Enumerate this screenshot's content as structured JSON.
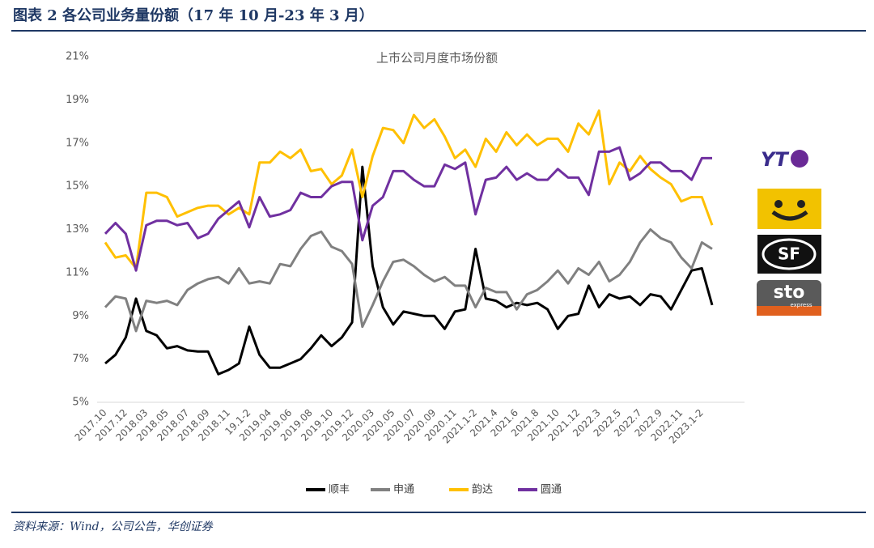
{
  "header": {
    "title": "图表 2 各公司业务量份额（17 年 10 月-23 年 3 月）"
  },
  "chart_data": {
    "type": "line",
    "title": "上市公司月度市场份额",
    "categories": [
      "2017.10",
      null,
      "2017.12",
      null,
      "2018.03",
      null,
      "2018.05",
      null,
      "2018.07",
      null,
      "2018.09",
      null,
      "2018.11",
      null,
      "19.1-2",
      null,
      "2019.04",
      null,
      "2019.06",
      null,
      "2019.08",
      null,
      "2019.10",
      null,
      "2019.12",
      null,
      "2020.03",
      null,
      "2020.05",
      null,
      "2020.07",
      null,
      "2020.09",
      null,
      "2020.11",
      null,
      "2021.1-2",
      null,
      "2021.4",
      null,
      "2021.6",
      null,
      "2021.8",
      null,
      "2021.10",
      null,
      "2021.12",
      null,
      "2022.3",
      null,
      "2022.5",
      null,
      "2022.7",
      null,
      "2022.9",
      null,
      "2022.11",
      null,
      "2023.1-2",
      null
    ],
    "series": [
      {
        "name": "顺丰",
        "color": "#000000",
        "values": [
          6.8,
          7.2,
          8.0,
          9.8,
          8.3,
          8.1,
          7.5,
          7.6,
          7.4,
          7.35,
          7.35,
          6.3,
          6.5,
          6.8,
          8.5,
          7.2,
          6.6,
          6.6,
          6.8,
          7.0,
          7.5,
          8.1,
          7.6,
          8.0,
          8.7,
          15.9,
          11.3,
          9.4,
          8.6,
          9.2,
          9.1,
          9.0,
          9.0,
          8.4,
          9.2,
          9.3,
          12.1,
          9.8,
          9.7,
          9.4,
          9.6,
          9.5,
          9.6,
          9.3,
          8.4,
          9.0,
          9.1,
          10.4,
          9.4,
          10.0,
          9.8,
          9.9,
          9.5,
          10.0,
          9.9,
          9.3,
          10.2,
          11.1,
          11.2,
          9.5
        ]
      },
      {
        "name": "申通",
        "color": "#808080",
        "values": [
          9.4,
          9.9,
          9.8,
          8.3,
          9.7,
          9.6,
          9.7,
          9.5,
          10.2,
          10.5,
          10.7,
          10.8,
          10.5,
          11.2,
          10.5,
          10.6,
          10.5,
          11.4,
          11.3,
          12.1,
          12.7,
          12.9,
          12.2,
          12.0,
          11.4,
          8.5,
          9.5,
          10.6,
          11.5,
          11.6,
          11.3,
          10.9,
          10.6,
          10.8,
          10.4,
          10.4,
          9.4,
          10.3,
          10.1,
          10.1,
          9.3,
          10.0,
          10.2,
          10.6,
          11.1,
          10.5,
          11.2,
          10.9,
          11.5,
          10.6,
          10.9,
          11.5,
          12.4,
          13.0,
          12.6,
          12.4,
          11.7,
          11.2,
          12.4,
          12.1
        ]
      },
      {
        "name": "韵达",
        "color": "#ffc000",
        "values": [
          12.4,
          11.7,
          11.8,
          11.2,
          14.7,
          14.7,
          14.5,
          13.6,
          13.8,
          14.0,
          14.1,
          14.1,
          13.7,
          14.0,
          13.7,
          16.1,
          16.1,
          16.6,
          16.3,
          16.7,
          15.7,
          15.8,
          15.1,
          15.5,
          16.7,
          14.5,
          16.4,
          17.7,
          17.6,
          17.0,
          18.3,
          17.7,
          18.1,
          17.3,
          16.3,
          16.7,
          15.9,
          17.2,
          16.6,
          17.5,
          16.9,
          17.4,
          16.9,
          17.2,
          17.2,
          16.6,
          17.9,
          17.4,
          18.5,
          15.1,
          16.1,
          15.7,
          16.4,
          15.8,
          15.4,
          15.1,
          14.3,
          14.5,
          14.5,
          13.2
        ]
      },
      {
        "name": "圆通",
        "color": "#7030a0",
        "values": [
          12.8,
          13.3,
          12.8,
          11.1,
          13.2,
          13.4,
          13.4,
          13.2,
          13.3,
          12.6,
          12.8,
          13.5,
          13.9,
          14.3,
          13.1,
          14.5,
          13.6,
          13.7,
          13.9,
          14.7,
          14.5,
          14.5,
          15.0,
          15.2,
          15.2,
          12.5,
          14.1,
          14.5,
          15.7,
          15.7,
          15.3,
          15.0,
          15.0,
          16.0,
          15.8,
          16.1,
          13.7,
          15.3,
          15.4,
          15.9,
          15.3,
          15.6,
          15.3,
          15.3,
          15.8,
          15.4,
          15.4,
          14.6,
          16.6,
          16.6,
          16.8,
          15.3,
          15.6,
          16.1,
          16.1,
          15.7,
          15.7,
          15.3,
          16.3,
          16.3
        ]
      }
    ],
    "ylim": [
      5,
      21
    ],
    "yticks": [
      {
        "value": 5,
        "label": "5%"
      },
      {
        "value": 7,
        "label": "7%"
      },
      {
        "value": 9,
        "label": "9%"
      },
      {
        "value": 11,
        "label": "11%"
      },
      {
        "value": 13,
        "label": "13%"
      },
      {
        "value": 15,
        "label": "15%"
      },
      {
        "value": 17,
        "label": "17%"
      },
      {
        "value": 19,
        "label": "19%"
      },
      {
        "value": 21,
        "label": "21%"
      }
    ],
    "grid": false,
    "legend": "bottom"
  },
  "logos": [
    "YT",
    "SF",
    "sto",
    "express"
  ],
  "source": "资料来源：Wind，公司公告，华创证券"
}
